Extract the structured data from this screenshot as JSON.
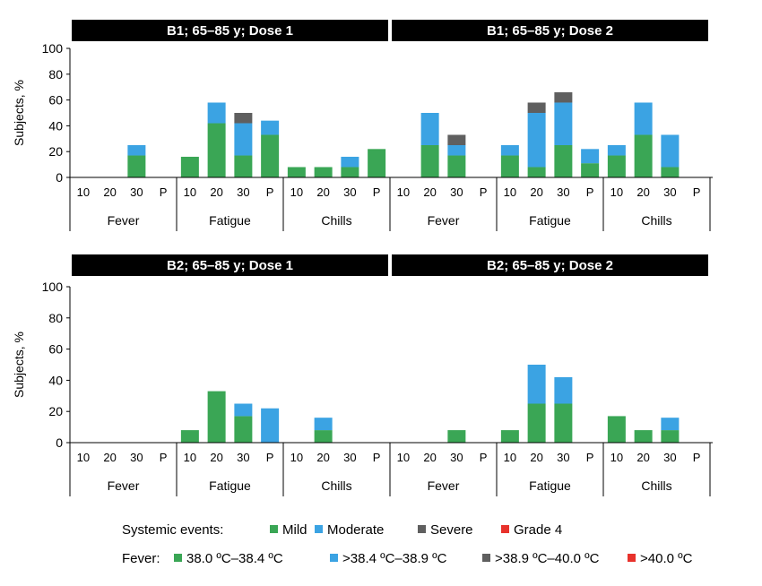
{
  "colors": {
    "mild": "#3aa655",
    "moderate": "#3ba3e3",
    "severe": "#5f5f5f",
    "grade4": "#e8322c",
    "header_bg": "#000000",
    "header_text": "#ffffff",
    "axis": "#000000"
  },
  "chart_data": {
    "type": "bar",
    "stacked": true,
    "ylabel": "Subjects, %",
    "ylim": [
      0,
      100
    ],
    "yticks": [
      0,
      20,
      40,
      60,
      80,
      100
    ],
    "dose_groups": [
      "10",
      "20",
      "30",
      "P"
    ],
    "event_groups": [
      "Fever",
      "Fatigue",
      "Chills"
    ],
    "series_names": [
      "Mild",
      "Moderate",
      "Severe",
      "Grade 4"
    ],
    "panels": [
      {
        "title": "B1; 65–85 y; Dose 1",
        "row": 0,
        "col": 0,
        "bars": {
          "Fever": [
            [
              0,
              0,
              0,
              0
            ],
            [
              0,
              0,
              0,
              0
            ],
            [
              17,
              8,
              0,
              0
            ],
            [
              0,
              0,
              0,
              0
            ]
          ],
          "Fatigue": [
            [
              16,
              0,
              0,
              0
            ],
            [
              42,
              16,
              0,
              0
            ],
            [
              17,
              25,
              8,
              0
            ],
            [
              33,
              11,
              0,
              0
            ]
          ],
          "Chills": [
            [
              8,
              0,
              0,
              0
            ],
            [
              8,
              0,
              0,
              0
            ],
            [
              8,
              8,
              0,
              0
            ],
            [
              22,
              0,
              0,
              0
            ]
          ]
        }
      },
      {
        "title": "B1; 65–85 y;  Dose 2",
        "row": 0,
        "col": 1,
        "bars": {
          "Fever": [
            [
              0,
              0,
              0,
              0
            ],
            [
              25,
              25,
              0,
              0
            ],
            [
              17,
              8,
              8,
              0
            ],
            [
              0,
              0,
              0,
              0
            ]
          ],
          "Fatigue": [
            [
              17,
              8,
              0,
              0
            ],
            [
              8,
              42,
              8,
              0
            ],
            [
              25,
              33,
              8,
              0
            ],
            [
              11,
              11,
              0,
              0
            ]
          ],
          "Chills": [
            [
              17,
              8,
              0,
              0
            ],
            [
              33,
              25,
              0,
              0
            ],
            [
              8,
              25,
              0,
              0
            ],
            [
              0,
              0,
              0,
              0
            ]
          ]
        }
      },
      {
        "title": "B2; 65–85 y; Dose 1",
        "row": 1,
        "col": 0,
        "bars": {
          "Fever": [
            [
              0,
              0,
              0,
              0
            ],
            [
              0,
              0,
              0,
              0
            ],
            [
              0,
              0,
              0,
              0
            ],
            [
              0,
              0,
              0,
              0
            ]
          ],
          "Fatigue": [
            [
              8,
              0,
              0,
              0
            ],
            [
              33,
              0,
              0,
              0
            ],
            [
              17,
              8,
              0,
              0
            ],
            [
              0,
              22,
              0,
              0
            ]
          ],
          "Chills": [
            [
              0,
              0,
              0,
              0
            ],
            [
              8,
              8,
              0,
              0
            ],
            [
              0,
              0,
              0,
              0
            ],
            [
              0,
              0,
              0,
              0
            ]
          ]
        }
      },
      {
        "title": "B2; 65–85 y;  Dose 2",
        "row": 1,
        "col": 1,
        "bars": {
          "Fever": [
            [
              0,
              0,
              0,
              0
            ],
            [
              0,
              0,
              0,
              0
            ],
            [
              8,
              0,
              0,
              0
            ],
            [
              0,
              0,
              0,
              0
            ]
          ],
          "Fatigue": [
            [
              8,
              0,
              0,
              0
            ],
            [
              25,
              25,
              0,
              0
            ],
            [
              25,
              17,
              0,
              0
            ],
            [
              0,
              0,
              0,
              0
            ]
          ],
          "Chills": [
            [
              17,
              0,
              0,
              0
            ],
            [
              8,
              0,
              0,
              0
            ],
            [
              8,
              8,
              0,
              0
            ],
            [
              0,
              0,
              0,
              0
            ]
          ]
        }
      }
    ],
    "legend": [
      {
        "label": "Systemic events:",
        "items": [
          {
            "label": "Mild",
            "series": "mild"
          },
          {
            "label": "Moderate",
            "series": "moderate"
          },
          {
            "label": "Severe",
            "series": "severe"
          },
          {
            "label": "Grade 4",
            "series": "grade4"
          }
        ]
      },
      {
        "label": "Fever:",
        "items": [
          {
            "label": "38.0 ºC–38.4 ºC",
            "series": "mild"
          },
          {
            "label": ">38.4 ºC–38.9 ºC",
            "series": "moderate"
          },
          {
            "label": ">38.9 ºC–40.0 ºC",
            "series": "severe"
          },
          {
            "label": ">40.0 ºC",
            "series": "grade4"
          }
        ]
      }
    ]
  }
}
